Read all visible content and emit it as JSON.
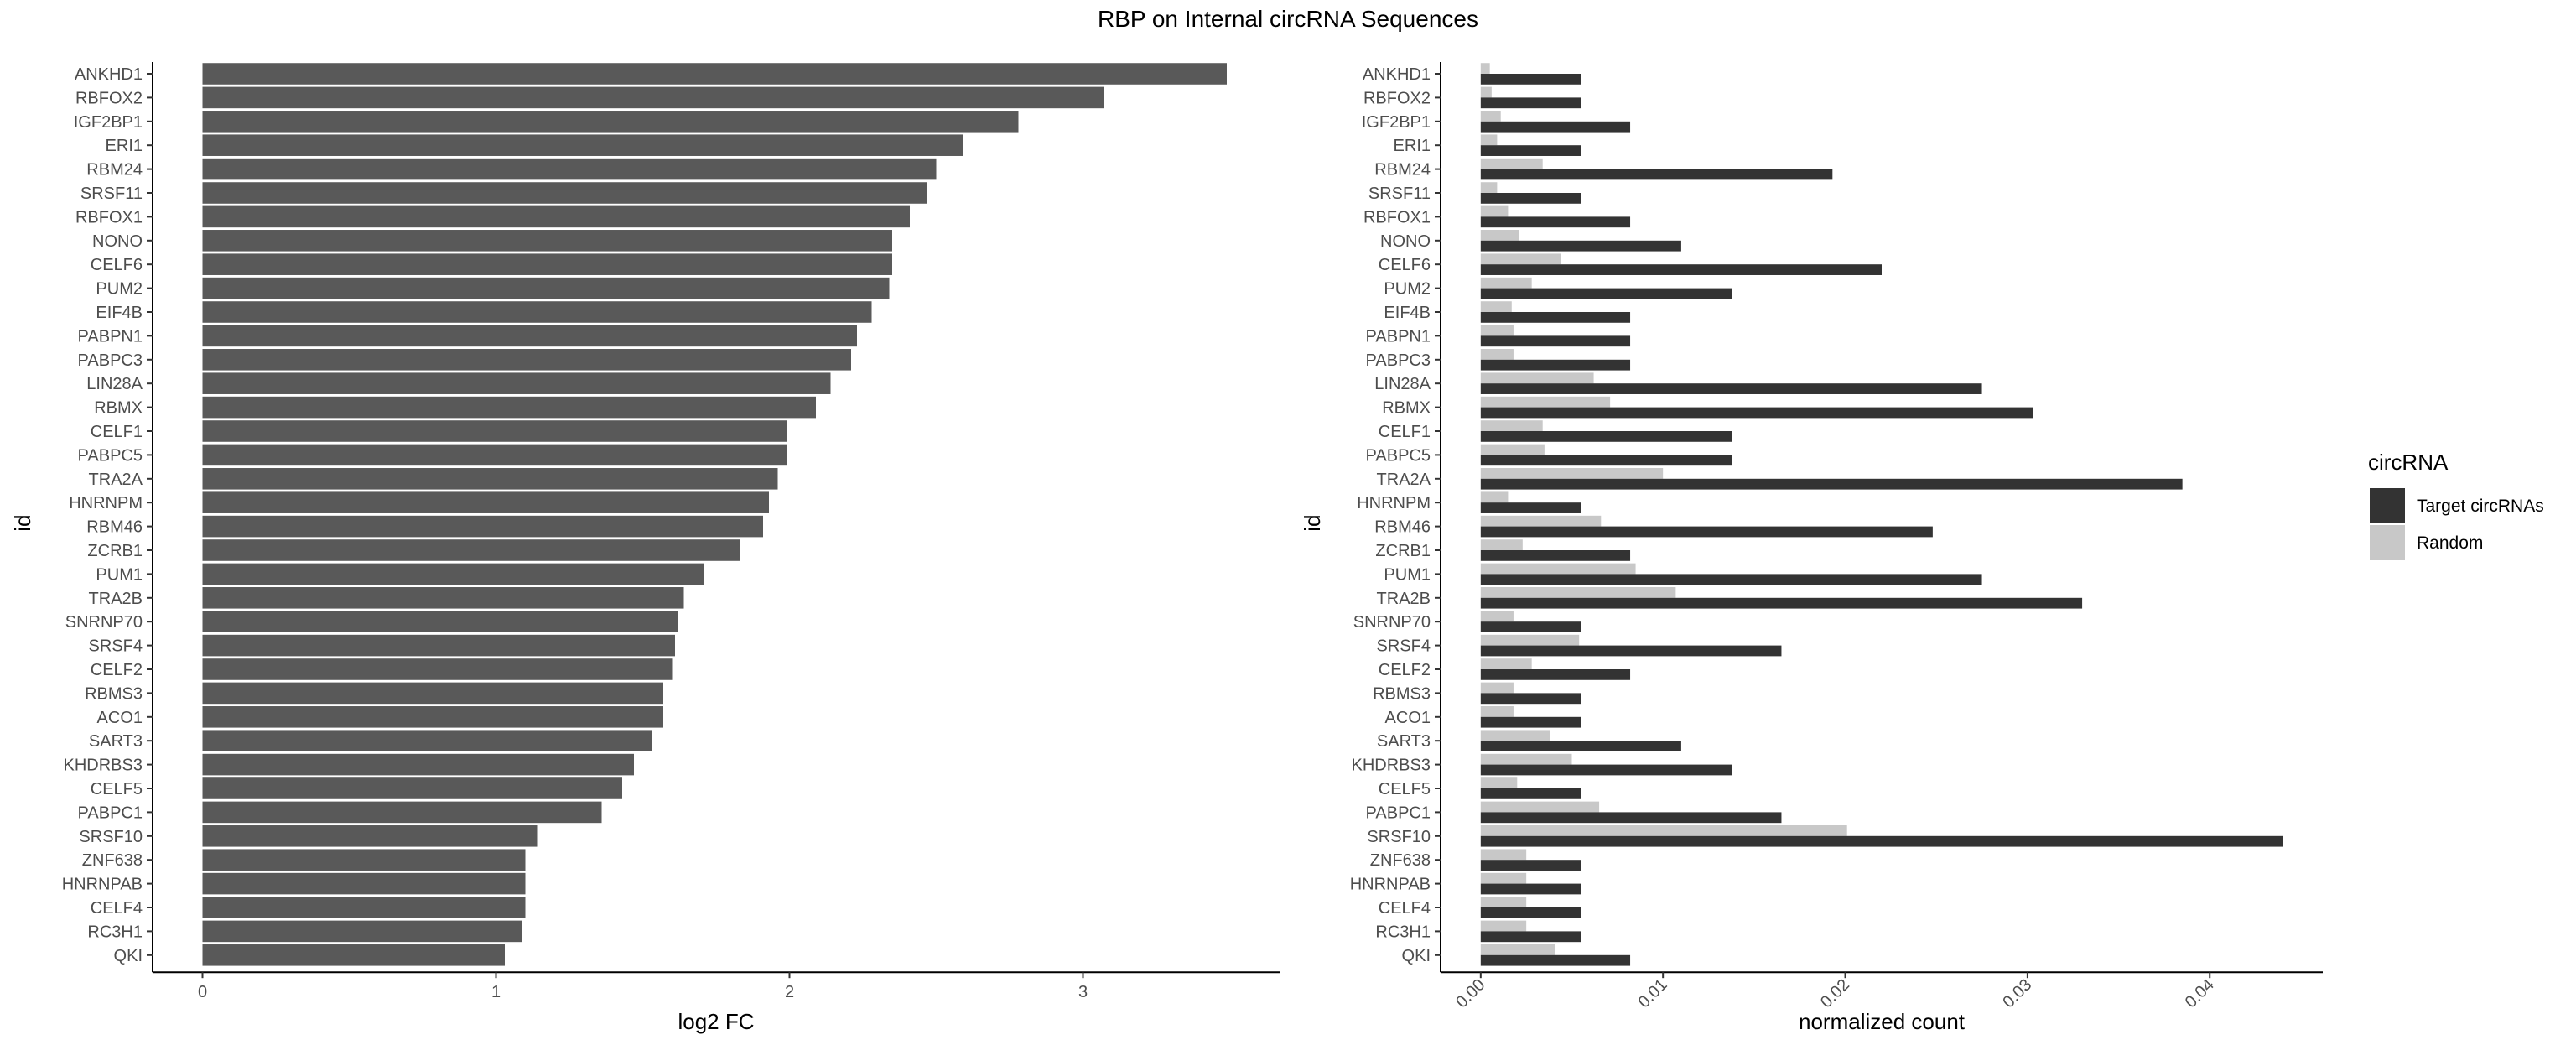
{
  "title": "RBP on Internal circRNA Sequences",
  "chart_data": [
    {
      "type": "bar",
      "orientation": "horizontal",
      "ylabel": "id",
      "xlabel": "log2 FC",
      "xlim": [
        -0.17,
        3.67
      ],
      "xticks": [
        0,
        1,
        2,
        3
      ],
      "grid": false,
      "bar_color": "#595959",
      "categories": [
        "ANKHD1",
        "RBFOX2",
        "IGF2BP1",
        "ERI1",
        "RBM24",
        "SRSF11",
        "RBFOX1",
        "NONO",
        "CELF6",
        "PUM2",
        "EIF4B",
        "PABPN1",
        "PABPC3",
        "LIN28A",
        "RBMX",
        "CELF1",
        "PABPC5",
        "TRA2A",
        "HNRNPM",
        "RBM46",
        "ZCRB1",
        "PUM1",
        "TRA2B",
        "SNRNP70",
        "SRSF4",
        "CELF2",
        "RBMS3",
        "ACO1",
        "SART3",
        "KHDRBS3",
        "CELF5",
        "PABPC1",
        "SRSF10",
        "ZNF638",
        "HNRNPAB",
        "CELF4",
        "RC3H1",
        "QKI"
      ],
      "values": [
        3.49,
        3.07,
        2.78,
        2.59,
        2.5,
        2.47,
        2.41,
        2.35,
        2.35,
        2.34,
        2.28,
        2.23,
        2.21,
        2.14,
        2.09,
        1.99,
        1.99,
        1.96,
        1.93,
        1.91,
        1.83,
        1.71,
        1.64,
        1.62,
        1.61,
        1.6,
        1.57,
        1.57,
        1.53,
        1.47,
        1.43,
        1.36,
        1.14,
        1.1,
        1.1,
        1.1,
        1.09,
        1.03
      ]
    },
    {
      "type": "bar",
      "orientation": "horizontal",
      "ylabel": "id",
      "xlabel": "normalized count",
      "xlim": [
        -0.0022,
        0.0462
      ],
      "xticks": [
        "0.00",
        "0.01",
        "0.02",
        "0.03",
        "0.04"
      ],
      "grid": false,
      "legend": {
        "title": "circRNA",
        "position": "right"
      },
      "categories": [
        "ANKHD1",
        "RBFOX2",
        "IGF2BP1",
        "ERI1",
        "RBM24",
        "SRSF11",
        "RBFOX1",
        "NONO",
        "CELF6",
        "PUM2",
        "EIF4B",
        "PABPN1",
        "PABPC3",
        "LIN28A",
        "RBMX",
        "CELF1",
        "PABPC5",
        "TRA2A",
        "HNRNPM",
        "RBM46",
        "ZCRB1",
        "PUM1",
        "TRA2B",
        "SNRNP70",
        "SRSF4",
        "CELF2",
        "RBMS3",
        "ACO1",
        "SART3",
        "KHDRBS3",
        "CELF5",
        "PABPC1",
        "SRSF10",
        "ZNF638",
        "HNRNPAB",
        "CELF4",
        "RC3H1",
        "QKI"
      ],
      "series": [
        {
          "name": "Random",
          "color": "#c8c8c8",
          "values": [
            0.0005,
            0.0006,
            0.0011,
            0.0009,
            0.0034,
            0.0009,
            0.0015,
            0.0021,
            0.0044,
            0.0028,
            0.0017,
            0.0018,
            0.0018,
            0.0062,
            0.0071,
            0.0034,
            0.0035,
            0.01,
            0.0015,
            0.0066,
            0.0023,
            0.0085,
            0.0107,
            0.0018,
            0.0054,
            0.0028,
            0.0018,
            0.0018,
            0.0038,
            0.005,
            0.002,
            0.0065,
            0.0201,
            0.0025,
            0.0025,
            0.0025,
            0.0025,
            0.0041
          ]
        },
        {
          "name": "Target circRNAs",
          "color": "#333333",
          "values": [
            0.0055,
            0.0055,
            0.0082,
            0.0055,
            0.0193,
            0.0055,
            0.0082,
            0.011,
            0.022,
            0.0138,
            0.0082,
            0.0082,
            0.0082,
            0.0275,
            0.0303,
            0.0138,
            0.0138,
            0.0385,
            0.0055,
            0.0248,
            0.0082,
            0.0275,
            0.033,
            0.0055,
            0.0165,
            0.0082,
            0.0055,
            0.0055,
            0.011,
            0.0138,
            0.0055,
            0.0165,
            0.044,
            0.0055,
            0.0055,
            0.0055,
            0.0055,
            0.0082
          ]
        }
      ]
    }
  ]
}
